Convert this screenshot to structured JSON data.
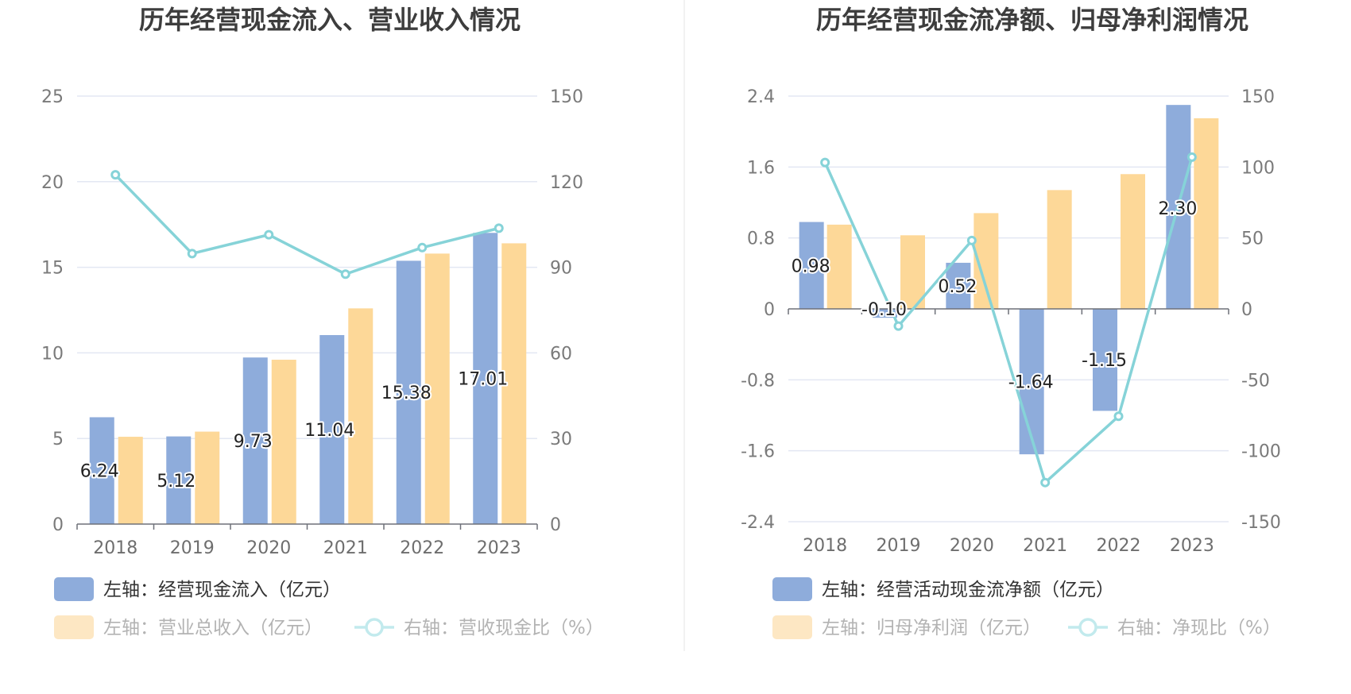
{
  "colors": {
    "bar_blue": "#8eacdb",
    "bar_orange": "#fdd898",
    "line_teal": "#86d3d8",
    "legend_blue": "#8eacdb",
    "legend_orange_faded": "#fde7c3",
    "legend_line_faded": "#c2eaed"
  },
  "chart_data": [
    {
      "type": "bar",
      "title": "历年经营现金流入、营业收入情况",
      "categories": [
        "2018",
        "2019",
        "2020",
        "2021",
        "2022",
        "2023"
      ],
      "left_axis": {
        "ticks": [
          "0",
          "5",
          "10",
          "15",
          "20",
          "25"
        ],
        "ylim": [
          0,
          25
        ]
      },
      "right_axis": {
        "ticks": [
          "0",
          "30",
          "60",
          "90",
          "120",
          "150"
        ],
        "ylim": [
          0,
          150
        ]
      },
      "series": [
        {
          "name": "左轴：经营现金流入（亿元）",
          "type": "bar",
          "axis": "left",
          "values": [
            6.24,
            5.12,
            9.73,
            11.04,
            15.38,
            17.01
          ],
          "labels": [
            "6.24",
            "5.12",
            "9.73",
            "11.04",
            "15.38",
            "17.01"
          ]
        },
        {
          "name": "左轴：营业总收入（亿元）",
          "type": "bar",
          "axis": "left",
          "values": [
            5.1,
            5.4,
            9.6,
            12.6,
            15.8,
            16.4
          ]
        },
        {
          "name": "右轴：营收现金比（%）",
          "type": "line",
          "axis": "right",
          "values": [
            122.4,
            94.8,
            101.4,
            87.6,
            96.9,
            103.7
          ]
        }
      ]
    },
    {
      "type": "bar",
      "title": "历年经营现金流净额、归母净利润情况",
      "categories": [
        "2018",
        "2019",
        "2020",
        "2021",
        "2022",
        "2023"
      ],
      "left_axis": {
        "ticks": [
          "-2.4",
          "-1.6",
          "-0.8",
          "0",
          "0.8",
          "1.6",
          "2.4"
        ],
        "ylim": [
          -2.4,
          2.4
        ]
      },
      "right_axis": {
        "ticks": [
          "-150",
          "-100",
          "-50",
          "0",
          "50",
          "100",
          "150"
        ],
        "ylim": [
          -150,
          150
        ]
      },
      "series": [
        {
          "name": "左轴：经营活动现金流净额（亿元）",
          "type": "bar",
          "axis": "left",
          "values": [
            0.98,
            -0.1,
            0.52,
            -1.64,
            -1.15,
            2.3
          ],
          "labels": [
            "0.98",
            "-0.10",
            "0.52",
            "-1.64",
            "-1.15",
            "2.30"
          ]
        },
        {
          "name": "左轴：归母净利润（亿元）",
          "type": "bar",
          "axis": "left",
          "values": [
            0.95,
            0.83,
            1.08,
            1.34,
            1.52,
            2.15
          ]
        },
        {
          "name": "右轴：净现比（%）",
          "type": "line",
          "axis": "right",
          "values": [
            103.2,
            -12.1,
            48.2,
            -122.4,
            -75.7,
            107.0
          ]
        }
      ]
    }
  ]
}
